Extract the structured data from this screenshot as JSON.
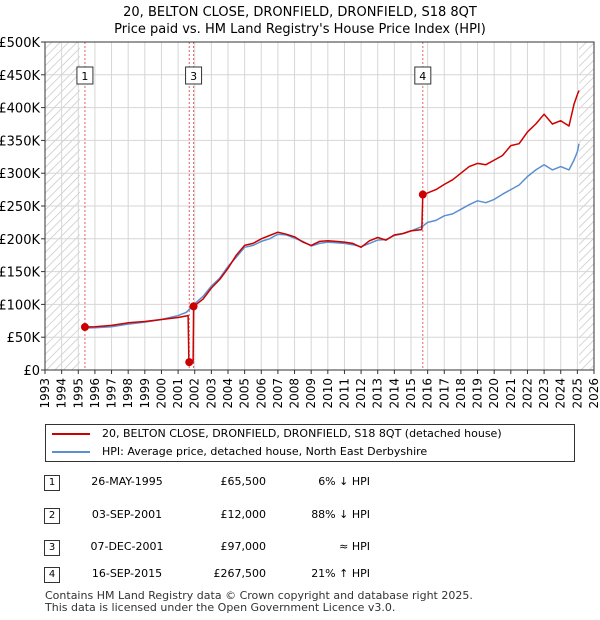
{
  "title_line1": "20, BELTON CLOSE, DRONFIELD, DRONFIELD, S18 8QT",
  "title_line2": "Price paid vs. HM Land Registry's House Price Index (HPI)",
  "colors": {
    "property": "#cc0000",
    "hpi": "#5b8fd0",
    "grid": "#d6d6d6",
    "hatch": "#c8c8c8",
    "marker_line": "#e06060"
  },
  "chart_data": {
    "type": "line",
    "xlim": [
      1993,
      2026
    ],
    "ylim": [
      0,
      500000
    ],
    "x_ticks": [
      "1993",
      "1994",
      "1995",
      "1996",
      "1997",
      "1998",
      "1999",
      "2000",
      "2001",
      "2002",
      "2003",
      "2004",
      "2005",
      "2006",
      "2007",
      "2008",
      "2009",
      "2010",
      "2011",
      "2012",
      "2013",
      "2014",
      "2015",
      "2016",
      "2017",
      "2018",
      "2019",
      "2020",
      "2021",
      "2022",
      "2023",
      "2024",
      "2025",
      "2026"
    ],
    "y_tick_values": [
      0,
      50000,
      100000,
      150000,
      200000,
      250000,
      300000,
      350000,
      400000,
      450000,
      500000
    ],
    "y_tick_labels": [
      "£0",
      "£50K",
      "£100K",
      "£150K",
      "£200K",
      "£250K",
      "£300K",
      "£350K",
      "£400K",
      "£450K",
      "£500K"
    ],
    "hatch_ranges": [
      [
        1993,
        1995.1
      ],
      [
        2025.1,
        2026
      ]
    ],
    "series": [
      {
        "name": "20, BELTON CLOSE, DRONFIELD, DRONFIELD, S18 8QT (detached house)",
        "points": [
          [
            1995.4,
            65500
          ],
          [
            1996,
            66000
          ],
          [
            1997,
            68000
          ],
          [
            1998,
            72000
          ],
          [
            1999,
            74000
          ],
          [
            2000,
            77000
          ],
          [
            2001.0,
            80000
          ],
          [
            2001.6,
            83000
          ],
          [
            2001.65,
            12000
          ],
          [
            2001.9,
            12000
          ],
          [
            2001.93,
            97000
          ],
          [
            2002.5,
            108000
          ],
          [
            2003,
            125000
          ],
          [
            2003.5,
            138000
          ],
          [
            2004,
            155000
          ],
          [
            2004.5,
            175000
          ],
          [
            2005,
            190000
          ],
          [
            2005.5,
            193000
          ],
          [
            2006,
            200000
          ],
          [
            2006.5,
            205000
          ],
          [
            2007,
            210000
          ],
          [
            2007.5,
            207000
          ],
          [
            2008,
            203000
          ],
          [
            2008.5,
            195000
          ],
          [
            2009,
            190000
          ],
          [
            2009.5,
            196000
          ],
          [
            2010,
            197000
          ],
          [
            2010.5,
            196000
          ],
          [
            2011,
            195000
          ],
          [
            2011.5,
            193000
          ],
          [
            2012,
            187000
          ],
          [
            2012.5,
            197000
          ],
          [
            2013,
            202000
          ],
          [
            2013.5,
            198000
          ],
          [
            2014,
            206000
          ],
          [
            2014.5,
            208000
          ],
          [
            2015.0,
            212000
          ],
          [
            2015.65,
            214000
          ],
          [
            2015.71,
            267500
          ],
          [
            2016,
            270000
          ],
          [
            2016.5,
            275000
          ],
          [
            2017,
            283000
          ],
          [
            2017.5,
            290000
          ],
          [
            2018,
            300000
          ],
          [
            2018.5,
            310000
          ],
          [
            2019,
            315000
          ],
          [
            2019.5,
            313000
          ],
          [
            2020,
            320000
          ],
          [
            2020.5,
            327000
          ],
          [
            2021,
            342000
          ],
          [
            2021.5,
            345000
          ],
          [
            2022,
            363000
          ],
          [
            2022.5,
            375000
          ],
          [
            2023,
            390000
          ],
          [
            2023.5,
            375000
          ],
          [
            2024,
            380000
          ],
          [
            2024.5,
            372000
          ],
          [
            2024.8,
            405000
          ],
          [
            2025.0,
            420000
          ],
          [
            2025.1,
            426000
          ]
        ]
      },
      {
        "name": "HPI: Average price, detached house, North East Derbyshire",
        "points": [
          [
            1995.4,
            64000
          ],
          [
            1996,
            64500
          ],
          [
            1997,
            66000
          ],
          [
            1998,
            70000
          ],
          [
            1999,
            73000
          ],
          [
            2000,
            77000
          ],
          [
            2001.0,
            83000
          ],
          [
            2001.5,
            88000
          ],
          [
            2002,
            101000
          ],
          [
            2002.5,
            112000
          ],
          [
            2003,
            128000
          ],
          [
            2003.5,
            140000
          ],
          [
            2004,
            158000
          ],
          [
            2004.5,
            172000
          ],
          [
            2005,
            187000
          ],
          [
            2005.5,
            190000
          ],
          [
            2006,
            196000
          ],
          [
            2006.5,
            200000
          ],
          [
            2007,
            207000
          ],
          [
            2007.5,
            206000
          ],
          [
            2008,
            201000
          ],
          [
            2008.5,
            196000
          ],
          [
            2009,
            189000
          ],
          [
            2009.5,
            193000
          ],
          [
            2010,
            195000
          ],
          [
            2010.5,
            194000
          ],
          [
            2011,
            193000
          ],
          [
            2011.5,
            191000
          ],
          [
            2012,
            188000
          ],
          [
            2012.5,
            193000
          ],
          [
            2013,
            198000
          ],
          [
            2013.5,
            199000
          ],
          [
            2014,
            205000
          ],
          [
            2014.5,
            208000
          ],
          [
            2015.0,
            212000
          ],
          [
            2015.7,
            219000
          ],
          [
            2016,
            225000
          ],
          [
            2016.5,
            228000
          ],
          [
            2017,
            235000
          ],
          [
            2017.5,
            238000
          ],
          [
            2018,
            245000
          ],
          [
            2018.5,
            252000
          ],
          [
            2019,
            258000
          ],
          [
            2019.5,
            255000
          ],
          [
            2020,
            260000
          ],
          [
            2020.5,
            268000
          ],
          [
            2021,
            275000
          ],
          [
            2021.5,
            282000
          ],
          [
            2022,
            295000
          ],
          [
            2022.5,
            305000
          ],
          [
            2023,
            313000
          ],
          [
            2023.5,
            305000
          ],
          [
            2024,
            310000
          ],
          [
            2024.5,
            305000
          ],
          [
            2024.8,
            320000
          ],
          [
            2025.0,
            333000
          ],
          [
            2025.1,
            345000
          ]
        ]
      }
    ],
    "sales": [
      {
        "label": "1",
        "x": 1995.4,
        "price": 65500
      },
      {
        "label": "2",
        "x": 2001.67,
        "price": 12000
      },
      {
        "label": "3",
        "x": 2001.93,
        "price": 97000
      },
      {
        "label": "4",
        "x": 2015.71,
        "price": 267500
      }
    ],
    "marker_labels": [
      {
        "label": "1",
        "x": 1995.4
      },
      {
        "label": "3",
        "x": 2001.93
      },
      {
        "label": "4",
        "x": 2015.71
      }
    ]
  },
  "legend": {
    "property_label": "20, BELTON CLOSE, DRONFIELD, DRONFIELD, S18 8QT (detached house)",
    "hpi_label": "HPI: Average price, detached house, North East Derbyshire"
  },
  "transactions": [
    {
      "num": "1",
      "date": "26-MAY-1995",
      "price": "£65,500",
      "hpi": "6% ↓ HPI"
    },
    {
      "num": "2",
      "date": "03-SEP-2001",
      "price": "£12,000",
      "hpi": "88% ↓ HPI"
    },
    {
      "num": "3",
      "date": "07-DEC-2001",
      "price": "£97,000",
      "hpi": "≈ HPI"
    },
    {
      "num": "4",
      "date": "16-SEP-2015",
      "price": "£267,500",
      "hpi": "21% ↑ HPI"
    }
  ],
  "footer_line1": "Contains HM Land Registry data © Crown copyright and database right 2025.",
  "footer_line2": "This data is licensed under the Open Government Licence v3.0."
}
